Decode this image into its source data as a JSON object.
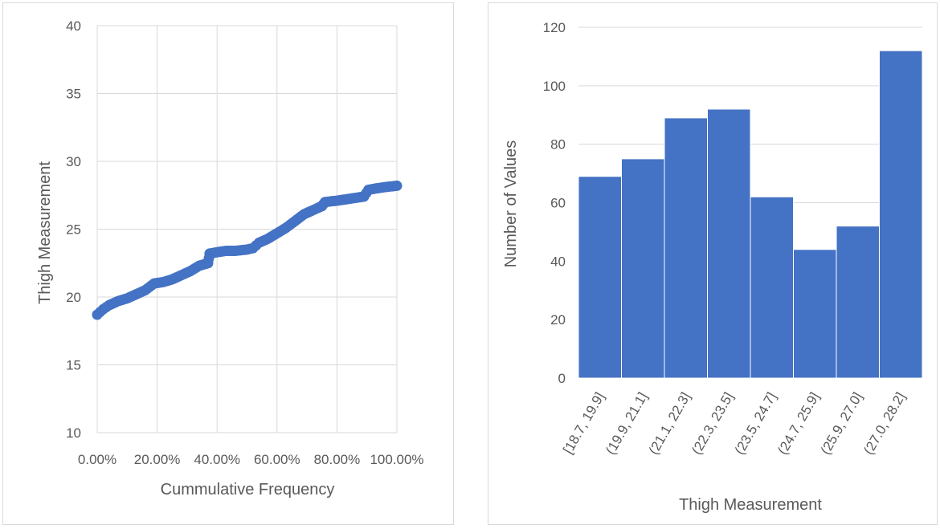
{
  "chart_data": [
    {
      "type": "scatter",
      "title": "",
      "xlabel": "Cummulative Frequency",
      "ylabel": "Thigh Measurement",
      "xlim": [
        0,
        1
      ],
      "ylim": [
        10,
        40
      ],
      "x_ticks": [
        "0.00%",
        "20.00%",
        "40.00%",
        "60.00%",
        "80.00%",
        "100.00%"
      ],
      "y_ticks": [
        "10",
        "15",
        "20",
        "25",
        "30",
        "35",
        "40"
      ],
      "grid": true,
      "legend": "none",
      "series": [
        {
          "color": "#4472c4",
          "points": [
            [
              0.0,
              18.7
            ],
            [
              0.02,
              19.1
            ],
            [
              0.04,
              19.4
            ],
            [
              0.07,
              19.7
            ],
            [
              0.1,
              19.9
            ],
            [
              0.13,
              20.2
            ],
            [
              0.16,
              20.5
            ],
            [
              0.19,
              21.0
            ],
            [
              0.22,
              21.1
            ],
            [
              0.25,
              21.3
            ],
            [
              0.28,
              21.6
            ],
            [
              0.31,
              21.9
            ],
            [
              0.34,
              22.3
            ],
            [
              0.37,
              22.5
            ],
            [
              0.375,
              23.2
            ],
            [
              0.4,
              23.3
            ],
            [
              0.43,
              23.4
            ],
            [
              0.46,
              23.4
            ],
            [
              0.5,
              23.5
            ],
            [
              0.52,
              23.6
            ],
            [
              0.54,
              24.0
            ],
            [
              0.57,
              24.3
            ],
            [
              0.6,
              24.7
            ],
            [
              0.63,
              25.1
            ],
            [
              0.66,
              25.6
            ],
            [
              0.69,
              26.1
            ],
            [
              0.72,
              26.4
            ],
            [
              0.75,
              26.7
            ],
            [
              0.76,
              27.0
            ],
            [
              0.8,
              27.1
            ],
            [
              0.83,
              27.2
            ],
            [
              0.86,
              27.3
            ],
            [
              0.89,
              27.4
            ],
            [
              0.905,
              27.9
            ],
            [
              0.93,
              28.0
            ],
            [
              0.96,
              28.1
            ],
            [
              1.0,
              28.2
            ]
          ]
        }
      ]
    },
    {
      "type": "bar",
      "title": "",
      "xlabel": "Thigh Measurement",
      "ylabel": "Number of Values",
      "ylim": [
        0,
        120
      ],
      "y_ticks": [
        "0",
        "20",
        "40",
        "60",
        "80",
        "100",
        "120"
      ],
      "categories": [
        "[18.7, 19.9]",
        "(19.9, 21.1]",
        "(21.1, 22.3]",
        "(22.3, 23.5]",
        "(23.5, 24.7]",
        "(24.7, 25.9]",
        "(25.9, 27.0]",
        "(27.0, 28.2]"
      ],
      "values": [
        69,
        75,
        89,
        92,
        62,
        44,
        52,
        112
      ],
      "color": "#4472c4",
      "grid": true,
      "legend": "none"
    }
  ]
}
